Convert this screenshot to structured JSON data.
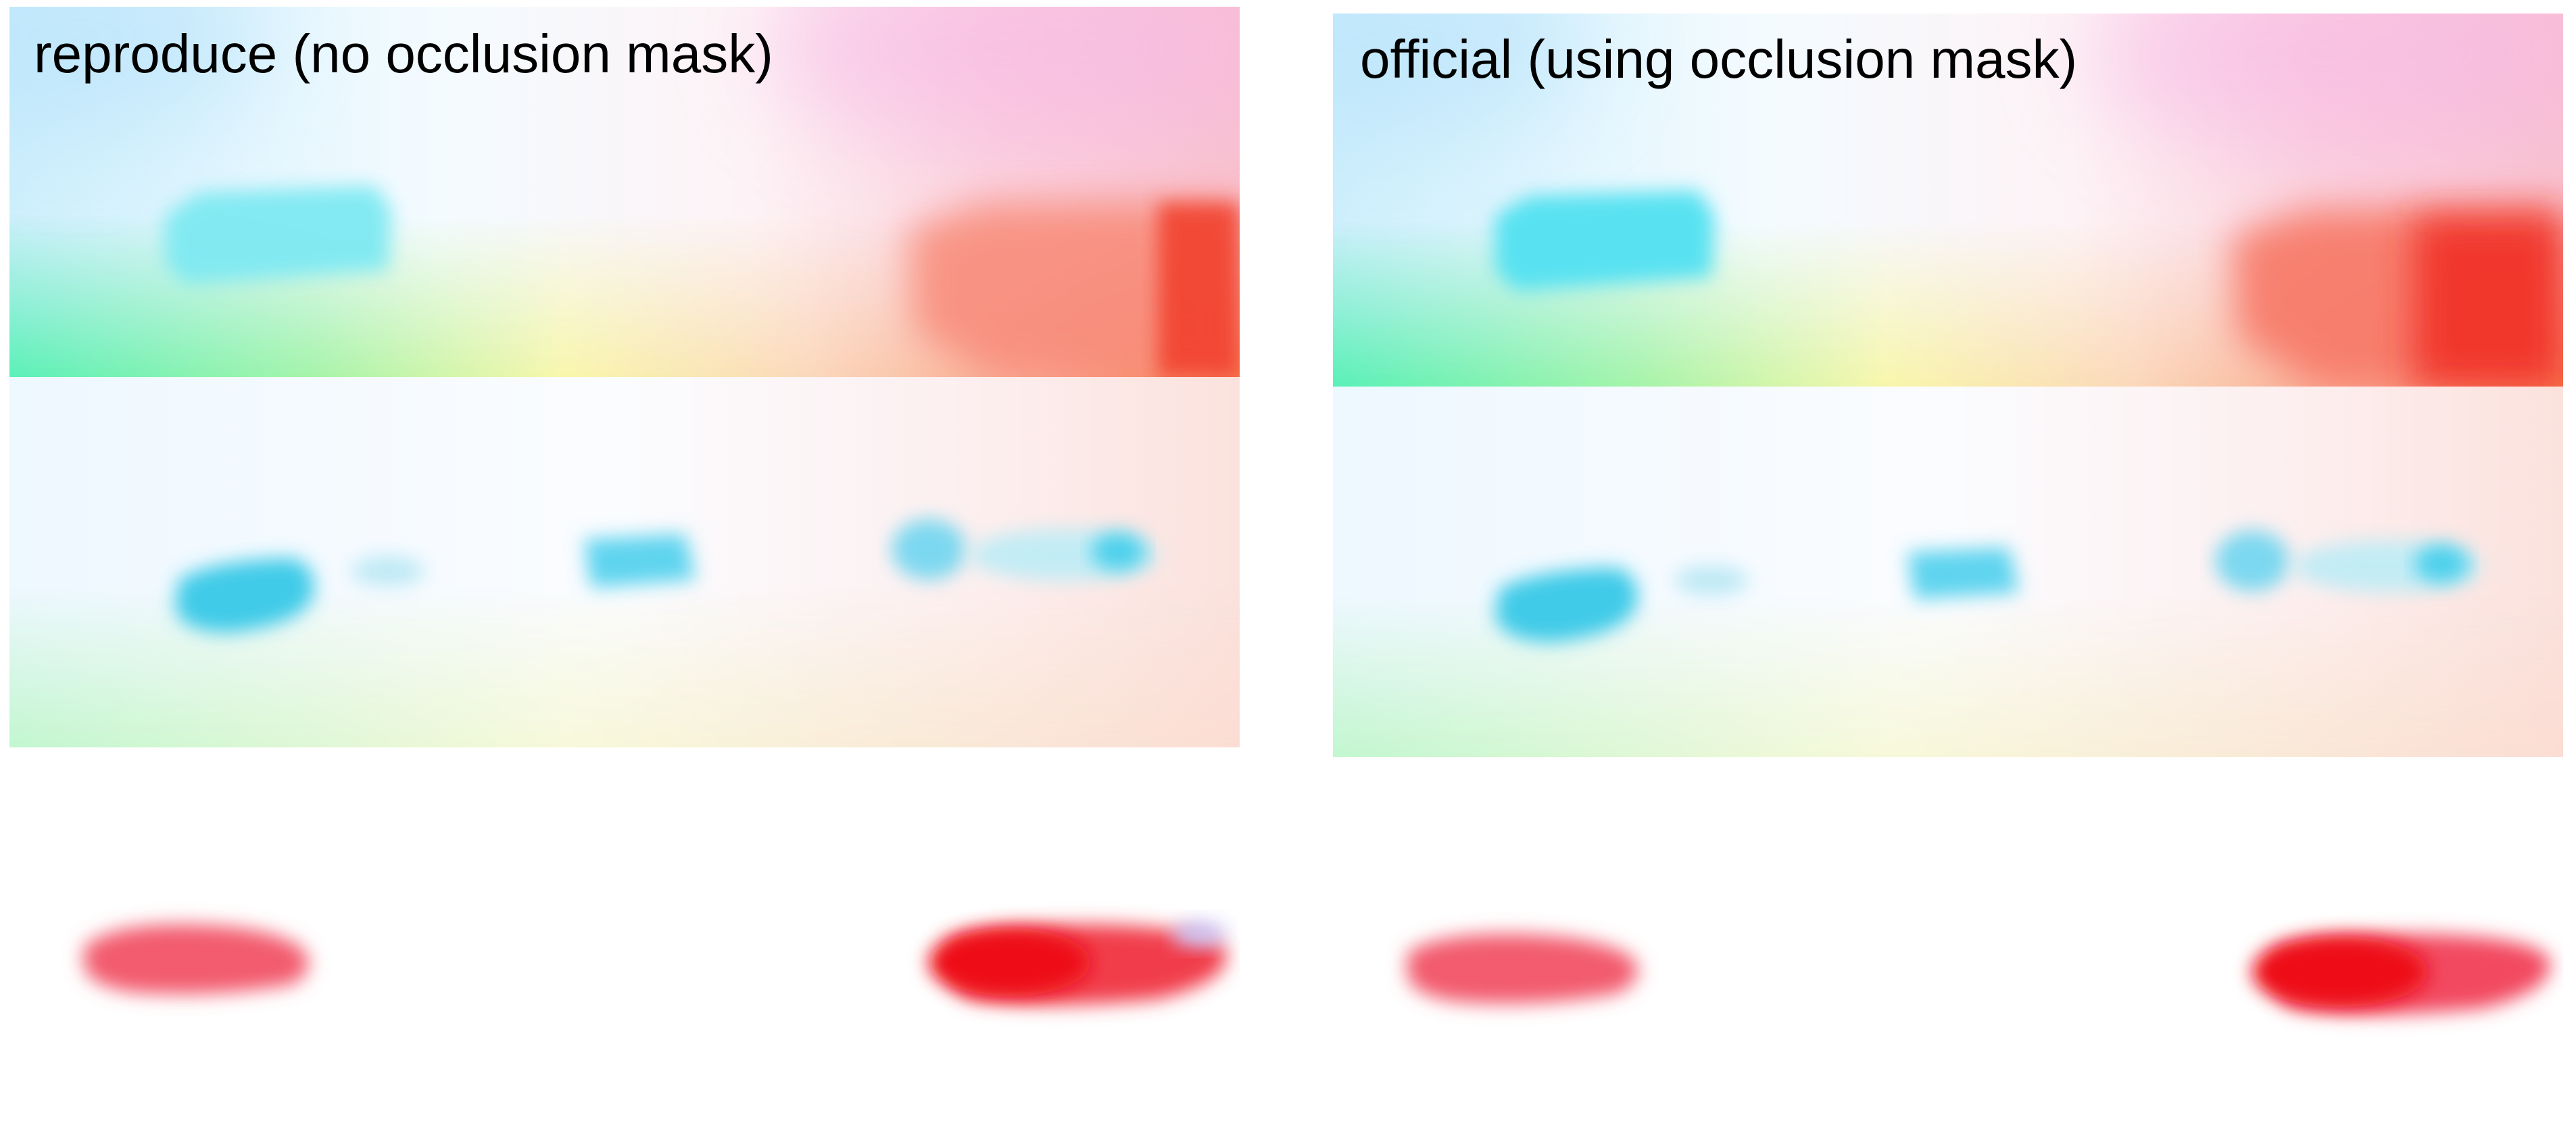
{
  "columns": [
    {
      "caption": "reproduce (no occlusion mask)",
      "panels": [
        "flow-field-1",
        "flow-field-2",
        "flow-field-3"
      ]
    },
    {
      "caption": "official (using occlusion mask)",
      "panels": [
        "flow-field-1",
        "flow-field-2",
        "flow-field-3"
      ]
    }
  ],
  "colors": {
    "cyan": "#55dff0",
    "red": "#ff2a22",
    "pink": "#f7b3e8",
    "green": "#8ff5b0",
    "yellow": "#f6f7b0",
    "background": "#ffffff"
  }
}
